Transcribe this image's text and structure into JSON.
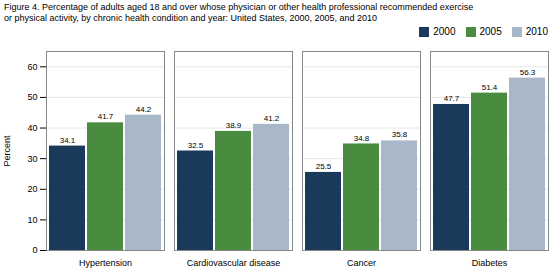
{
  "chart_data": {
    "type": "bar",
    "title": "Figure 4. Percentage of adults aged 18 and over whose physician or other health professional recommended exercise\nor physical activity, by chronic health condition and year: United States, 2000, 2005, and 2010",
    "ylabel": "Percent",
    "categories": [
      "Hypertension",
      "Cardiovascular disease",
      "Cancer",
      "Diabetes"
    ],
    "series": [
      {
        "name": "2000",
        "color": "#1a3a5c",
        "values": [
          34.1,
          32.5,
          25.5,
          47.7
        ]
      },
      {
        "name": "2005",
        "color": "#4a8c3f",
        "values": [
          41.7,
          38.9,
          34.8,
          51.4
        ]
      },
      {
        "name": "2010",
        "color": "#a8b8c8",
        "values": [
          44.2,
          41.2,
          35.8,
          56.3
        ]
      }
    ],
    "ylim": [
      0,
      65
    ],
    "yticks": [
      0,
      10,
      20,
      30,
      40,
      50,
      60
    ],
    "grid": true,
    "legend": "upper right",
    "data_labels": true
  }
}
